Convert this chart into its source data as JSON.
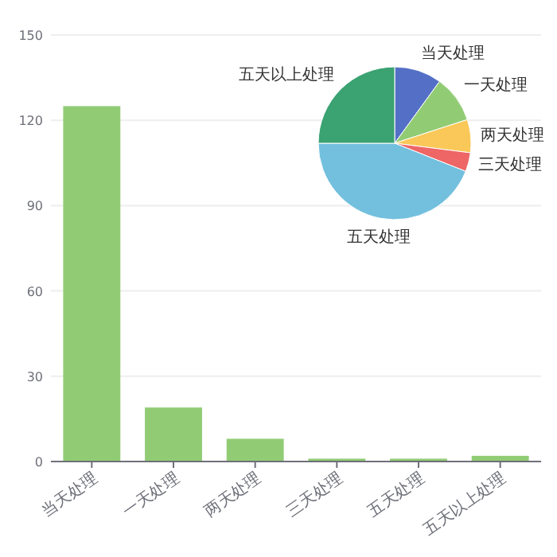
{
  "chart_data": [
    {
      "type": "bar",
      "categories": [
        "当天处理",
        "一天处理",
        "两天处理",
        "三天处理",
        "五天处理",
        "五天以上处理"
      ],
      "values": [
        125,
        19,
        8,
        1,
        1,
        2
      ],
      "color": "#91cc75",
      "ylim": [
        0,
        150
      ],
      "yticks": [
        0,
        30,
        60,
        90,
        120,
        150
      ],
      "grid": "y"
    },
    {
      "type": "pie",
      "categories": [
        "当天处理",
        "一天处理",
        "两天处理",
        "三天处理",
        "五天处理",
        "五天以上处理"
      ],
      "values": [
        10,
        10,
        7,
        4,
        44,
        25
      ],
      "colors": [
        "#5470c6",
        "#91cc75",
        "#fac858",
        "#ee6666",
        "#73c0de",
        "#3ba272"
      ]
    }
  ]
}
